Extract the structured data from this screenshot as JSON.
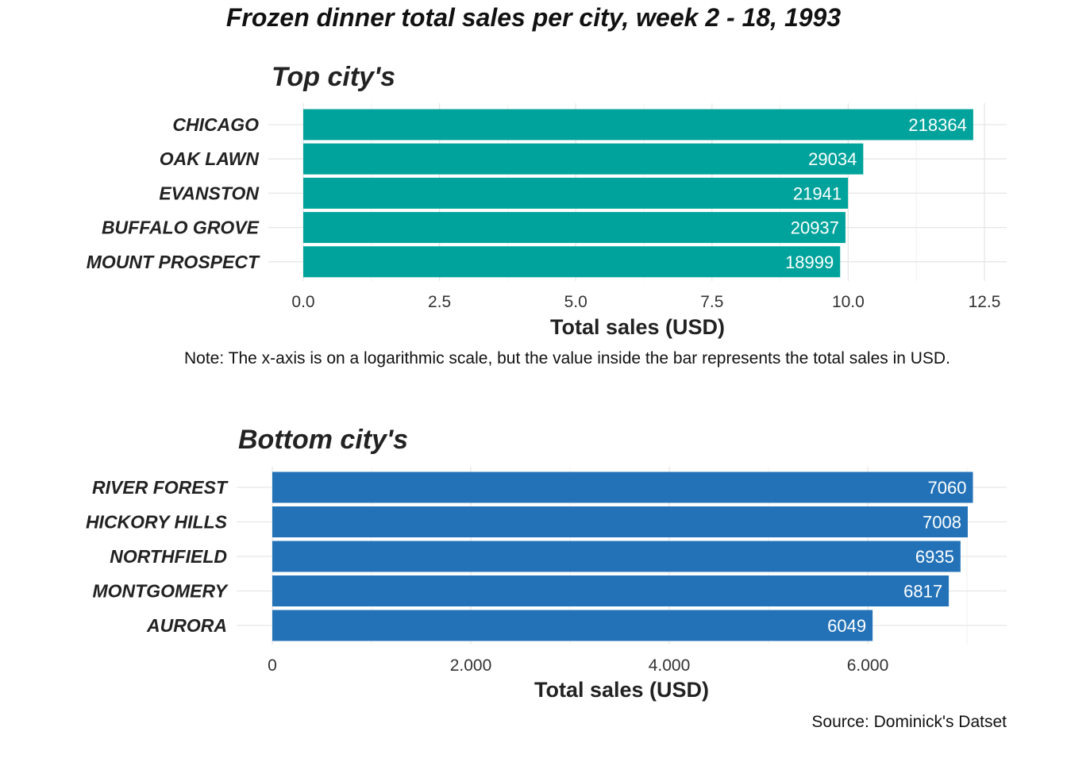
{
  "title": "Frozen dinner total sales per city, week 2 - 18, 1993",
  "note": "Note: The x-axis is on a logarithmic scale, but the value inside the bar represents the total sales in USD.",
  "source": "Source: Dominick's Datset",
  "colors": {
    "top_bars": "#00A39B",
    "bottom_bars": "#2372B8"
  },
  "chart_data": [
    {
      "type": "bar",
      "orientation": "horizontal",
      "title": "Top city's",
      "xlabel": "Total sales (USD)",
      "x_scale": "log (bar length = natural log of total sales)",
      "xlim": [
        0,
        12.5
      ],
      "x_ticks": [
        "0.0",
        "2.5",
        "5.0",
        "7.5",
        "10.0",
        "12.5"
      ],
      "grid": true,
      "categories": [
        "CHICAGO",
        "OAK LAWN",
        "EVANSTON",
        "BUFFALO GROVE",
        "MOUNT PROSPECT"
      ],
      "values": [
        218364,
        29034,
        21941,
        20937,
        18999
      ],
      "data_labels": [
        "218364",
        "29034",
        "21941",
        "20937",
        "18999"
      ]
    },
    {
      "type": "bar",
      "orientation": "horizontal",
      "title": "Bottom city's",
      "xlabel": "Total sales (USD)",
      "xlim": [
        0,
        7000
      ],
      "x_ticks": [
        "0",
        "2.000",
        "4.000",
        "6.000"
      ],
      "grid": true,
      "categories": [
        "RIVER FOREST",
        "HICKORY HILLS",
        "NORTHFIELD",
        "MONTGOMERY",
        "AURORA"
      ],
      "values": [
        7060,
        7008,
        6935,
        6817,
        6049
      ],
      "data_labels": [
        "7060",
        "7008",
        "6935",
        "6817",
        "6049"
      ]
    }
  ]
}
